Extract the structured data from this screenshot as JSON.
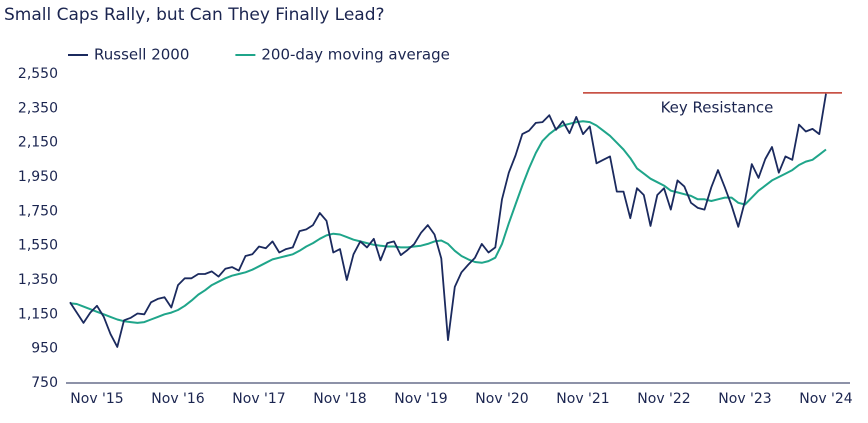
{
  "chart_data": {
    "type": "line",
    "title": "Small Caps Rally, but Can They Finally Lead?",
    "categories": [
      null,
      null,
      null,
      null,
      "Nov '15",
      null,
      null,
      null,
      null,
      null,
      null,
      null,
      null,
      null,
      null,
      null,
      "Nov '16",
      null,
      null,
      null,
      null,
      null,
      null,
      null,
      null,
      null,
      null,
      null,
      "Nov '17",
      null,
      null,
      null,
      null,
      null,
      null,
      null,
      null,
      null,
      null,
      null,
      "Nov '18",
      null,
      null,
      null,
      null,
      null,
      null,
      null,
      null,
      null,
      null,
      null,
      "Nov '19",
      null,
      null,
      null,
      null,
      null,
      null,
      null,
      null,
      null,
      null,
      null,
      "Nov '20",
      null,
      null,
      null,
      null,
      null,
      null,
      null,
      null,
      null,
      null,
      null,
      "Nov '21",
      null,
      null,
      null,
      null,
      null,
      null,
      null,
      null,
      null,
      null,
      null,
      "Nov '22",
      null,
      null,
      null,
      null,
      null,
      null,
      null,
      null,
      null,
      null,
      null,
      "Nov '23",
      null,
      null,
      null,
      null,
      null,
      null,
      null,
      null,
      null,
      null,
      null,
      "Nov '24"
    ],
    "series": [
      {
        "name": "Russell 2000",
        "color": "#1b2a5e",
        "values": [
          1220,
          1160,
          1100,
          1160,
          1200,
          1135,
          1035,
          960,
          1115,
          1130,
          1155,
          1150,
          1220,
          1240,
          1250,
          1190,
          1320,
          1360,
          1360,
          1385,
          1385,
          1400,
          1370,
          1415,
          1425,
          1405,
          1490,
          1500,
          1545,
          1535,
          1575,
          1510,
          1530,
          1540,
          1635,
          1645,
          1670,
          1740,
          1695,
          1510,
          1530,
          1350,
          1500,
          1575,
          1540,
          1590,
          1465,
          1565,
          1575,
          1495,
          1525,
          1560,
          1625,
          1670,
          1615,
          1475,
          1000,
          1310,
          1395,
          1440,
          1480,
          1560,
          1510,
          1540,
          1820,
          1975,
          2075,
          2200,
          2220,
          2265,
          2270,
          2310,
          2225,
          2275,
          2205,
          2300,
          2200,
          2245,
          2030,
          2050,
          2070,
          1865,
          1865,
          1710,
          1885,
          1845,
          1665,
          1845,
          1885,
          1760,
          1930,
          1895,
          1800,
          1770,
          1760,
          1890,
          1990,
          1890,
          1785,
          1660,
          1810,
          2025,
          1945,
          2055,
          2125,
          1975,
          2070,
          2050,
          2255,
          2215,
          2230,
          2200,
          2435
        ]
      },
      {
        "name": "200-day moving average",
        "color": "#1fa58a",
        "values": [
          1215,
          1210,
          1195,
          1180,
          1165,
          1150,
          1135,
          1120,
          1110,
          1105,
          1100,
          1105,
          1120,
          1135,
          1150,
          1160,
          1175,
          1200,
          1230,
          1265,
          1290,
          1320,
          1340,
          1360,
          1375,
          1385,
          1395,
          1410,
          1430,
          1450,
          1470,
          1480,
          1490,
          1500,
          1520,
          1545,
          1565,
          1590,
          1610,
          1620,
          1615,
          1600,
          1585,
          1575,
          1565,
          1555,
          1550,
          1545,
          1545,
          1540,
          1540,
          1545,
          1550,
          1560,
          1575,
          1580,
          1560,
          1520,
          1490,
          1470,
          1455,
          1450,
          1460,
          1480,
          1560,
          1680,
          1790,
          1900,
          2000,
          2090,
          2160,
          2200,
          2230,
          2250,
          2260,
          2270,
          2275,
          2270,
          2250,
          2220,
          2190,
          2150,
          2110,
          2060,
          2000,
          1970,
          1940,
          1920,
          1900,
          1870,
          1860,
          1850,
          1840,
          1820,
          1820,
          1810,
          1820,
          1830,
          1830,
          1800,
          1790,
          1830,
          1870,
          1900,
          1930,
          1950,
          1970,
          1990,
          2020,
          2040,
          2050,
          2080,
          2110
        ]
      }
    ],
    "ylim": [
      750,
      2550
    ],
    "yticks": [
      {
        "value": 750,
        "label": "750"
      },
      {
        "value": 950,
        "label": "950"
      },
      {
        "value": 1150,
        "label": "1,150"
      },
      {
        "value": 1350,
        "label": "1,350"
      },
      {
        "value": 1550,
        "label": "1,550"
      },
      {
        "value": 1750,
        "label": "1,750"
      },
      {
        "value": 1950,
        "label": "1,950"
      },
      {
        "value": 2150,
        "label": "2,150"
      },
      {
        "value": 2350,
        "label": "2,350"
      },
      {
        "value": 2550,
        "label": "2,550"
      }
    ],
    "grid": false,
    "annotation": {
      "text": "Key Resistance",
      "value": 2440,
      "x": "Nov '21",
      "color": "#c0392b"
    }
  }
}
